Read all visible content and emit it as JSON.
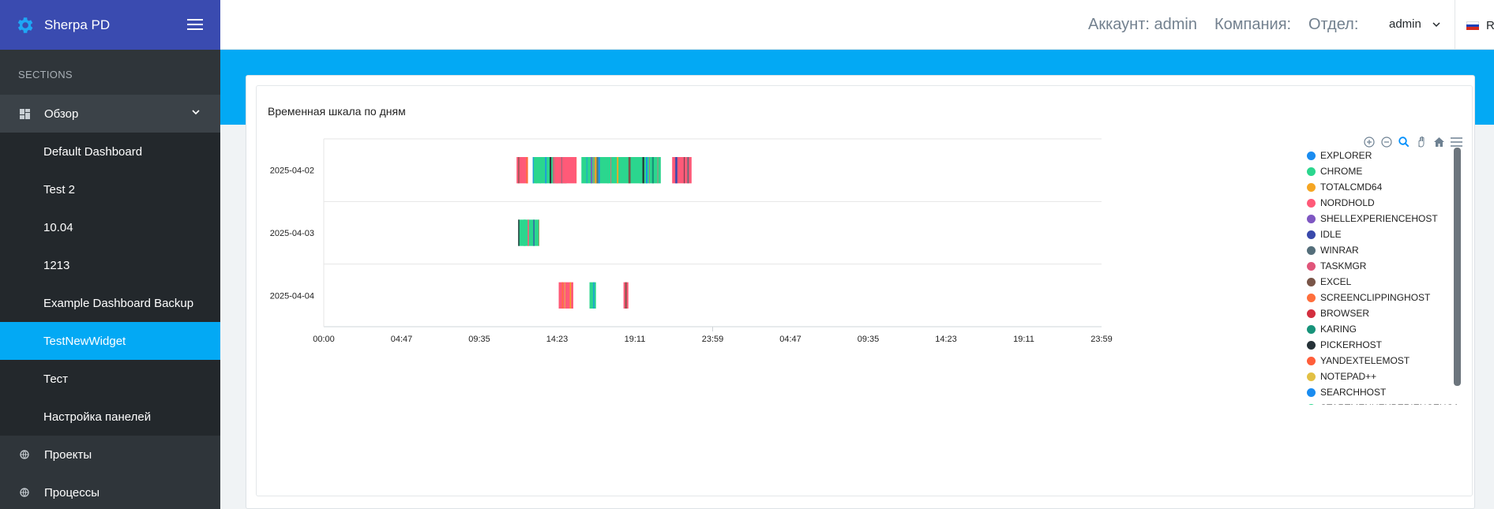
{
  "app": {
    "brand": "Sherpa PD"
  },
  "sidebar": {
    "sections_label": "SECTIONS",
    "overview": {
      "label": "Обзор",
      "icon": "dashboard-icon"
    },
    "items": [
      {
        "label": "Default Dashboard",
        "active": false
      },
      {
        "label": "Test 2",
        "active": false
      },
      {
        "label": "10.04",
        "active": false
      },
      {
        "label": "1213",
        "active": false
      },
      {
        "label": "Example Dashboard Backup",
        "active": false
      },
      {
        "label": "TestNewWidget",
        "active": true
      },
      {
        "label": "Тест",
        "active": false
      },
      {
        "label": "Настройка панелей",
        "active": false
      }
    ],
    "projects": {
      "label": "Проекты",
      "icon": "globe-icon"
    },
    "processes": {
      "label": "Процессы",
      "icon": "globe-icon"
    }
  },
  "header": {
    "account": "Аккаунт: admin",
    "company": "Компания:",
    "department": "Отдел:",
    "user": "admin",
    "lang": "R"
  },
  "widget": {
    "title": "Временная шкала по дням"
  },
  "colors": {
    "accent": "#03a9f4",
    "brand": "#3a4bb0",
    "sidebar": "#2f353a"
  },
  "chart_data": {
    "type": "timeline",
    "title": "Временная шкала по дням",
    "categories": [
      "2025-04-02",
      "2025-04-03",
      "2025-04-04"
    ],
    "x_ticks": [
      "00:00",
      "04:47",
      "09:35",
      "14:23",
      "19:11",
      "23:59",
      "04:47",
      "09:35",
      "14:23",
      "19:11",
      "23:59"
    ],
    "x_range_hours": [
      0,
      48
    ],
    "legend": [
      {
        "name": "EXPLORER",
        "color": "#1a8cf0"
      },
      {
        "name": "CHROME",
        "color": "#2bd68e"
      },
      {
        "name": "TOTALCMD64",
        "color": "#f5a623"
      },
      {
        "name": "NORDHOLD",
        "color": "#ff5a78"
      },
      {
        "name": "SHELLEXPERIENCEHOST",
        "color": "#7e57c2"
      },
      {
        "name": "IDLE",
        "color": "#3949ab"
      },
      {
        "name": "WINRAR",
        "color": "#546e7a"
      },
      {
        "name": "TASKMGR",
        "color": "#e0557a"
      },
      {
        "name": "EXCEL",
        "color": "#795548"
      },
      {
        "name": "SCREENCLIPPINGHOST",
        "color": "#ff6f3c"
      },
      {
        "name": "BROWSER",
        "color": "#d32f3f"
      },
      {
        "name": "KARING",
        "color": "#17937a"
      },
      {
        "name": "PICKERHOST",
        "color": "#263238"
      },
      {
        "name": "YANDEXTELEMOST",
        "color": "#ff5e3a"
      },
      {
        "name": "NOTEPAD++",
        "color": "#e2c044"
      },
      {
        "name": "SEARCHHOST",
        "color": "#1a8cf0"
      },
      {
        "name": "STARTMENUEXPERIENCEHOST",
        "color": "#2bd68e"
      }
    ],
    "segments": [
      {
        "row": 0,
        "start": 11.9,
        "end": 12.6,
        "app": "NORDHOLD"
      },
      {
        "row": 0,
        "start": 12.9,
        "end": 15.0,
        "app": "CHROME"
      },
      {
        "row": 0,
        "start": 14.2,
        "end": 15.6,
        "app": "NORDHOLD"
      },
      {
        "row": 0,
        "start": 15.9,
        "end": 20.8,
        "app": "CHROME"
      },
      {
        "row": 0,
        "start": 21.5,
        "end": 22.7,
        "app": "NORDHOLD"
      },
      {
        "row": 1,
        "start": 12.0,
        "end": 13.3,
        "app": "CHROME"
      },
      {
        "row": 2,
        "start": 14.5,
        "end": 15.4,
        "app": "NORDHOLD"
      },
      {
        "row": 2,
        "start": 16.4,
        "end": 16.8,
        "app": "CHROME"
      },
      {
        "row": 2,
        "start": 18.5,
        "end": 18.8,
        "app": "NORDHOLD"
      }
    ],
    "grid": true,
    "legend_position": "right"
  }
}
